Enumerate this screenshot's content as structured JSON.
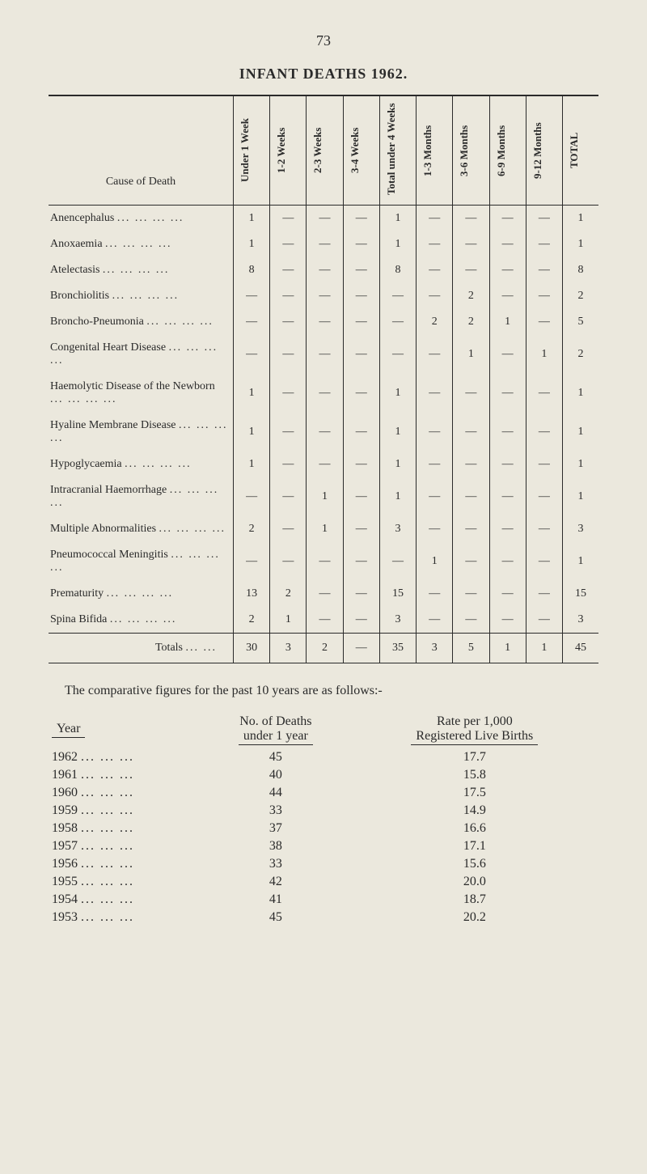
{
  "page_number": "73",
  "title": "INFANT DEATHS 1962.",
  "table1": {
    "cause_header": "Cause of Death",
    "columns": [
      "Under 1 Week",
      "1-2 Weeks",
      "2-3 Weeks",
      "3-4 Weeks",
      "Total under 4 Weeks",
      "1-3 Months",
      "3-6 Months",
      "6-9 Months",
      "9-12 Months",
      "TOTAL"
    ],
    "rows": [
      {
        "cause": "Anencephalus",
        "cells": [
          "1",
          "—",
          "—",
          "—",
          "1",
          "—",
          "—",
          "—",
          "—",
          "1"
        ]
      },
      {
        "cause": "Anoxaemia",
        "cells": [
          "1",
          "—",
          "—",
          "—",
          "1",
          "—",
          "—",
          "—",
          "—",
          "1"
        ]
      },
      {
        "cause": "Atelectasis",
        "cells": [
          "8",
          "—",
          "—",
          "—",
          "8",
          "—",
          "—",
          "—",
          "—",
          "8"
        ]
      },
      {
        "cause": "Bronchiolitis",
        "cells": [
          "—",
          "—",
          "—",
          "—",
          "—",
          "—",
          "2",
          "—",
          "—",
          "2"
        ]
      },
      {
        "cause": "Broncho-Pneumonia",
        "cells": [
          "—",
          "—",
          "—",
          "—",
          "—",
          "2",
          "2",
          "1",
          "—",
          "5"
        ]
      },
      {
        "cause": "Congenital Heart Disease",
        "cells": [
          "—",
          "—",
          "—",
          "—",
          "—",
          "—",
          "1",
          "—",
          "1",
          "2"
        ]
      },
      {
        "cause": "Haemolytic Disease of the Newborn",
        "cells": [
          "1",
          "—",
          "—",
          "—",
          "1",
          "—",
          "—",
          "—",
          "—",
          "1"
        ]
      },
      {
        "cause": "Hyaline Membrane Disease",
        "cells": [
          "1",
          "—",
          "—",
          "—",
          "1",
          "—",
          "—",
          "—",
          "—",
          "1"
        ]
      },
      {
        "cause": "Hypoglycaemia",
        "cells": [
          "1",
          "—",
          "—",
          "—",
          "1",
          "—",
          "—",
          "—",
          "—",
          "1"
        ]
      },
      {
        "cause": "Intracranial Haemorrhage",
        "cells": [
          "—",
          "—",
          "1",
          "—",
          "1",
          "—",
          "—",
          "—",
          "—",
          "1"
        ]
      },
      {
        "cause": "Multiple Abnormalities",
        "cells": [
          "2",
          "—",
          "1",
          "—",
          "3",
          "—",
          "—",
          "—",
          "—",
          "3"
        ]
      },
      {
        "cause": "Pneumococcal Meningitis",
        "cells": [
          "—",
          "—",
          "—",
          "—",
          "—",
          "1",
          "—",
          "—",
          "—",
          "1"
        ]
      },
      {
        "cause": "Prematurity",
        "cells": [
          "13",
          "2",
          "—",
          "—",
          "15",
          "—",
          "—",
          "—",
          "—",
          "15"
        ]
      },
      {
        "cause": "Spina Bifida",
        "cells": [
          "2",
          "1",
          "—",
          "—",
          "3",
          "—",
          "—",
          "—",
          "—",
          "3"
        ]
      }
    ],
    "totals_label": "Totals",
    "totals": [
      "30",
      "3",
      "2",
      "—",
      "35",
      "3",
      "5",
      "1",
      "1",
      "45"
    ]
  },
  "comparative_intro": "The comparative figures for the past 10 years are as follows:-",
  "table2": {
    "headers": {
      "year": "Year",
      "deaths": "No. of Deaths under 1 year",
      "rate": "Rate per 1,000 Registered Live Births"
    },
    "rows": [
      {
        "year": "1962",
        "deaths": "45",
        "rate": "17.7"
      },
      {
        "year": "1961",
        "deaths": "40",
        "rate": "15.8"
      },
      {
        "year": "1960",
        "deaths": "44",
        "rate": "17.5"
      },
      {
        "year": "1959",
        "deaths": "33",
        "rate": "14.9"
      },
      {
        "year": "1958",
        "deaths": "37",
        "rate": "16.6"
      },
      {
        "year": "1957",
        "deaths": "38",
        "rate": "17.1"
      },
      {
        "year": "1956",
        "deaths": "33",
        "rate": "15.6"
      },
      {
        "year": "1955",
        "deaths": "42",
        "rate": "20.0"
      },
      {
        "year": "1954",
        "deaths": "41",
        "rate": "18.7"
      },
      {
        "year": "1953",
        "deaths": "45",
        "rate": "20.2"
      }
    ]
  }
}
